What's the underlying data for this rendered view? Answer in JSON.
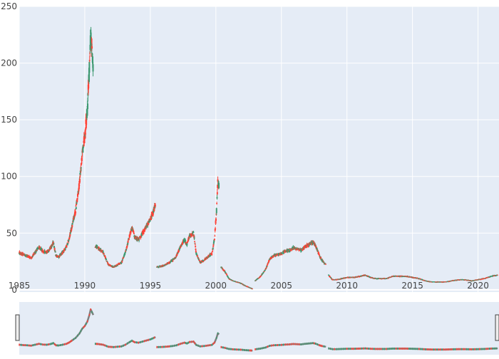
{
  "colors": {
    "plot_bg": "#e5ecf6",
    "grid": "#ffffff",
    "increasing": "#3d9970",
    "decreasing": "#ff4136",
    "tick_text": "#444444",
    "rangeslider_line": "#7f7f7f"
  },
  "chart_data": {
    "type": "candlestick",
    "title": "",
    "xlabel": "",
    "ylabel": "",
    "x_range": [
      1985.0,
      2021.6
    ],
    "y_range": [
      -2,
      250
    ],
    "x_ticks": [
      1985,
      1990,
      1995,
      2000,
      2005,
      2010,
      2015,
      2020
    ],
    "y_ticks": [
      0,
      50,
      100,
      150,
      200,
      250
    ],
    "grid": true,
    "rangeslider": true,
    "series": [
      {
        "segments": [
          [
            [
              1985.0,
              33
            ],
            [
              1985.3,
              31
            ],
            [
              1985.6,
              30
            ],
            [
              1985.9,
              28
            ],
            [
              1986.2,
              33
            ],
            [
              1986.5,
              38
            ],
            [
              1986.8,
              34
            ],
            [
              1987.1,
              33
            ],
            [
              1987.4,
              37
            ],
            [
              1987.6,
              42
            ],
            [
              1987.8,
              30
            ],
            [
              1988.0,
              29
            ],
            [
              1988.3,
              33
            ],
            [
              1988.6,
              38
            ],
            [
              1988.8,
              45
            ],
            [
              1989.0,
              55
            ],
            [
              1989.3,
              70
            ],
            [
              1989.6,
              95
            ],
            [
              1989.8,
              120
            ],
            [
              1990.0,
              135
            ],
            [
              1990.2,
              160
            ],
            [
              1990.35,
              195
            ],
            [
              1990.45,
              225
            ],
            [
              1990.55,
              210
            ],
            [
              1990.65,
              195
            ]
          ],
          [
            [
              1990.8,
              38
            ],
            [
              1991.0,
              37
            ],
            [
              1991.4,
              33
            ],
            [
              1991.8,
              22
            ],
            [
              1992.2,
              20
            ],
            [
              1992.5,
              22
            ],
            [
              1992.8,
              24
            ],
            [
              1993.1,
              33
            ],
            [
              1993.4,
              47
            ],
            [
              1993.6,
              55
            ],
            [
              1993.8,
              47
            ],
            [
              1994.1,
              44
            ],
            [
              1994.4,
              50
            ],
            [
              1994.7,
              56
            ],
            [
              1995.0,
              62
            ],
            [
              1995.2,
              68
            ],
            [
              1995.4,
              75
            ]
          ],
          [
            [
              1995.5,
              20
            ],
            [
              1995.9,
              21
            ],
            [
              1996.3,
              23
            ],
            [
              1996.7,
              26
            ],
            [
              1997.0,
              30
            ],
            [
              1997.3,
              38
            ],
            [
              1997.6,
              44
            ],
            [
              1997.8,
              40
            ],
            [
              1998.0,
              48
            ],
            [
              1998.3,
              50
            ],
            [
              1998.5,
              32
            ],
            [
              1998.8,
              24
            ],
            [
              1999.1,
              26
            ],
            [
              1999.4,
              29
            ],
            [
              1999.7,
              32
            ],
            [
              1999.9,
              45
            ],
            [
              2000.05,
              70
            ],
            [
              2000.15,
              95
            ],
            [
              2000.25,
              90
            ]
          ],
          [
            [
              2000.4,
              20
            ],
            [
              2000.7,
              16
            ],
            [
              2001.0,
              10
            ],
            [
              2001.3,
              8
            ],
            [
              2001.6,
              7
            ],
            [
              2001.9,
              6
            ],
            [
              2002.2,
              4
            ],
            [
              2002.6,
              2
            ],
            [
              2002.8,
              1
            ]
          ],
          [
            [
              2003.0,
              8
            ],
            [
              2003.4,
              12
            ],
            [
              2003.8,
              18
            ],
            [
              2004.1,
              27
            ],
            [
              2004.4,
              30
            ],
            [
              2004.7,
              31
            ],
            [
              2005.0,
              32
            ],
            [
              2005.3,
              34
            ],
            [
              2005.6,
              35
            ],
            [
              2005.9,
              37
            ],
            [
              2006.2,
              36
            ],
            [
              2006.5,
              35
            ],
            [
              2006.8,
              38
            ],
            [
              2007.1,
              40
            ],
            [
              2007.4,
              42
            ],
            [
              2007.6,
              39
            ],
            [
              2007.9,
              30
            ],
            [
              2008.1,
              26
            ],
            [
              2008.4,
              22
            ]
          ],
          [
            [
              2008.6,
              13
            ],
            [
              2008.9,
              9
            ],
            [
              2009.2,
              9
            ],
            [
              2009.6,
              10
            ],
            [
              2010.0,
              11
            ],
            [
              2010.5,
              11
            ],
            [
              2011.0,
              12
            ],
            [
              2011.4,
              13
            ],
            [
              2011.8,
              11
            ],
            [
              2012.2,
              10
            ],
            [
              2012.6,
              10
            ],
            [
              2013.0,
              10
            ],
            [
              2013.5,
              12
            ],
            [
              2014.0,
              12
            ],
            [
              2014.5,
              12
            ],
            [
              2015.0,
              11
            ],
            [
              2015.5,
              10
            ],
            [
              2016.0,
              8
            ],
            [
              2016.5,
              7
            ],
            [
              2017.0,
              7
            ],
            [
              2017.5,
              7
            ],
            [
              2018.0,
              8
            ],
            [
              2018.5,
              9
            ],
            [
              2019.0,
              9
            ],
            [
              2019.5,
              8
            ],
            [
              2020.0,
              9
            ],
            [
              2020.5,
              10
            ],
            [
              2021.0,
              12
            ],
            [
              2021.5,
              13
            ]
          ]
        ]
      }
    ]
  }
}
